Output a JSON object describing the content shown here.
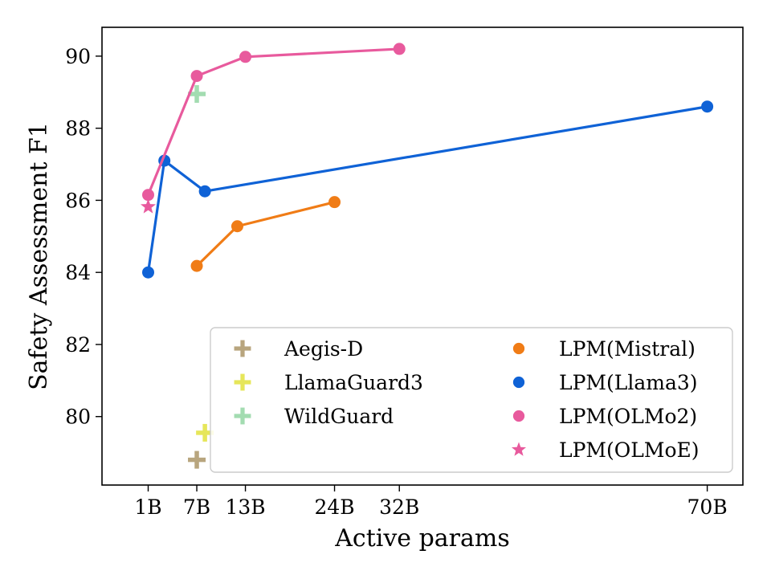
{
  "chart_data": {
    "type": "line",
    "title": "",
    "xlabel": "Active params",
    "ylabel": "Safety Assessment F1",
    "xlim": [
      -4.7,
      74.4
    ],
    "ylim": [
      78.1,
      90.8
    ],
    "x_ticks": [
      {
        "value": 1,
        "label": "1B"
      },
      {
        "value": 7,
        "label": "7B"
      },
      {
        "value": 13,
        "label": "13B"
      },
      {
        "value": 24,
        "label": "24B"
      },
      {
        "value": 32,
        "label": "32B"
      },
      {
        "value": 70,
        "label": "70B"
      }
    ],
    "y_ticks": [
      80,
      82,
      84,
      86,
      88,
      90
    ],
    "grid": false,
    "legend": {
      "placement": "lower-right",
      "columns": 2
    },
    "series": [
      {
        "name": "Aegis-D",
        "marker": "plus",
        "line": false,
        "color": "#b8a57e",
        "points": [
          {
            "x": 7,
            "y": 78.8
          }
        ]
      },
      {
        "name": "LlamaGuard3",
        "marker": "plus",
        "line": false,
        "color": "#e6e65a",
        "points": [
          {
            "x": 8,
            "y": 79.55
          }
        ]
      },
      {
        "name": "WildGuard",
        "marker": "plus",
        "line": false,
        "color": "#a3dcb1",
        "points": [
          {
            "x": 7,
            "y": 88.95
          }
        ]
      },
      {
        "name": "LPM(Mistral)",
        "marker": "circle",
        "line": true,
        "color": "#f07c16",
        "points": [
          {
            "x": 7,
            "y": 84.18
          },
          {
            "x": 12,
            "y": 85.28
          },
          {
            "x": 24,
            "y": 85.95
          }
        ]
      },
      {
        "name": "LPM(Llama3)",
        "marker": "circle",
        "line": true,
        "color": "#0f62d6",
        "points": [
          {
            "x": 1,
            "y": 84.0
          },
          {
            "x": 3,
            "y": 87.1
          },
          {
            "x": 8,
            "y": 86.25
          },
          {
            "x": 70,
            "y": 88.6
          }
        ]
      },
      {
        "name": "LPM(OLMo2)",
        "marker": "circle",
        "line": true,
        "color": "#e85a9d",
        "points": [
          {
            "x": 1,
            "y": 86.15
          },
          {
            "x": 7,
            "y": 89.45
          },
          {
            "x": 13,
            "y": 89.98
          },
          {
            "x": 32,
            "y": 90.2
          }
        ]
      },
      {
        "name": "LPM(OLMoE)",
        "marker": "star",
        "line": false,
        "color": "#e85a9d",
        "points": [
          {
            "x": 1,
            "y": 85.82
          }
        ]
      }
    ]
  }
}
